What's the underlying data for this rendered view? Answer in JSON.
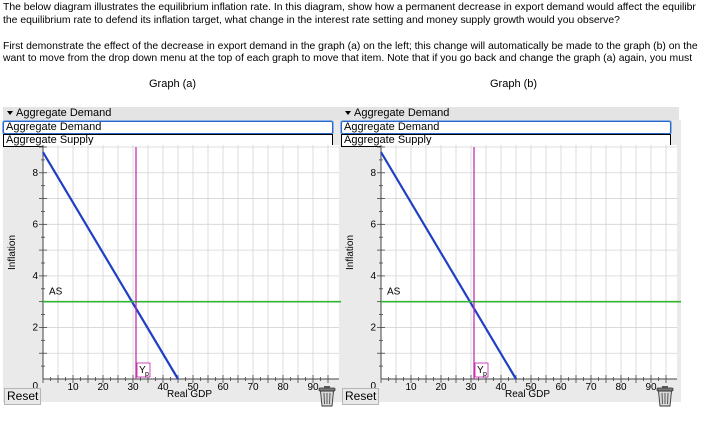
{
  "instructions": {
    "line1": "The below diagram illustrates the equilibrium inflation rate. In this diagram, show how a permanent decrease in export demand would affect the equilibr",
    "line2": "the equilibrium rate to defend its inflation target, what change in the interest rate setting and money supply growth would you observe?",
    "line3": "First demonstrate the effect of the decrease in export demand in the graph (a) on the left; this change will automatically be made to the graph (b) on the",
    "line4": "want to move from the drop down menu at the top of each graph to move that item. Note that if you go back and change the graph (a) again, you must"
  },
  "graphs": [
    {
      "title": "Graph (a)",
      "dropdown": {
        "selected": "Aggregate Demand",
        "options": [
          "Aggregate Demand",
          "Aggregate Supply"
        ]
      },
      "ylabel": "Inflation",
      "xlabel": "Real GDP",
      "reset_label": "Reset"
    },
    {
      "title": "Graph (b)",
      "dropdown": {
        "selected": "Aggregate Demand",
        "options": [
          "Aggregate Demand",
          "Aggregate Supply"
        ]
      },
      "ylabel": "Inflation",
      "xlabel": "Real GDP",
      "reset_label": "Reset"
    }
  ],
  "chart_data": [
    {
      "type": "line",
      "xlabel": "Real GDP",
      "ylabel": "Inflation",
      "xlim": [
        0,
        100
      ],
      "ylim": [
        0,
        9
      ],
      "xticks": [
        0,
        10,
        20,
        30,
        40,
        50,
        60,
        70,
        80,
        90
      ],
      "yticks": [
        0,
        2,
        4,
        6,
        8
      ],
      "grid": true,
      "series": [
        {
          "name": "",
          "kind": "AD",
          "color": "#1f3fc4",
          "points": [
            [
              0,
              8.8
            ],
            [
              45,
              0
            ]
          ]
        },
        {
          "name": "AS",
          "kind": "AS",
          "color": "#2fb52f",
          "points": [
            [
              0,
              3
            ],
            [
              100,
              3
            ]
          ]
        },
        {
          "name": "Y",
          "kind": "YP",
          "color": "#c21fa8",
          "points": [
            [
              31,
              0
            ],
            [
              31,
              9
            ]
          ]
        }
      ],
      "labels": {
        "as": "AS",
        "yp": "Y",
        "yp_sub": "p"
      }
    },
    {
      "type": "line",
      "xlabel": "Real GDP",
      "ylabel": "Inflation",
      "xlim": [
        0,
        100
      ],
      "ylim": [
        0,
        9
      ],
      "xticks": [
        0,
        10,
        20,
        30,
        40,
        50,
        60,
        70,
        80,
        90
      ],
      "yticks": [
        0,
        2,
        4,
        6,
        8
      ],
      "grid": true,
      "series": [
        {
          "name": "",
          "kind": "AD",
          "color": "#1f3fc4",
          "points": [
            [
              0,
              8.8
            ],
            [
              45,
              0
            ]
          ]
        },
        {
          "name": "AS",
          "kind": "AS",
          "color": "#2fb52f",
          "points": [
            [
              0,
              3
            ],
            [
              100,
              3
            ]
          ]
        },
        {
          "name": "Y",
          "kind": "YP",
          "color": "#c21fa8",
          "points": [
            [
              31,
              0
            ],
            [
              31,
              9
            ]
          ]
        }
      ],
      "labels": {
        "as": "AS",
        "yp": "Y",
        "yp_sub": "p"
      }
    }
  ]
}
